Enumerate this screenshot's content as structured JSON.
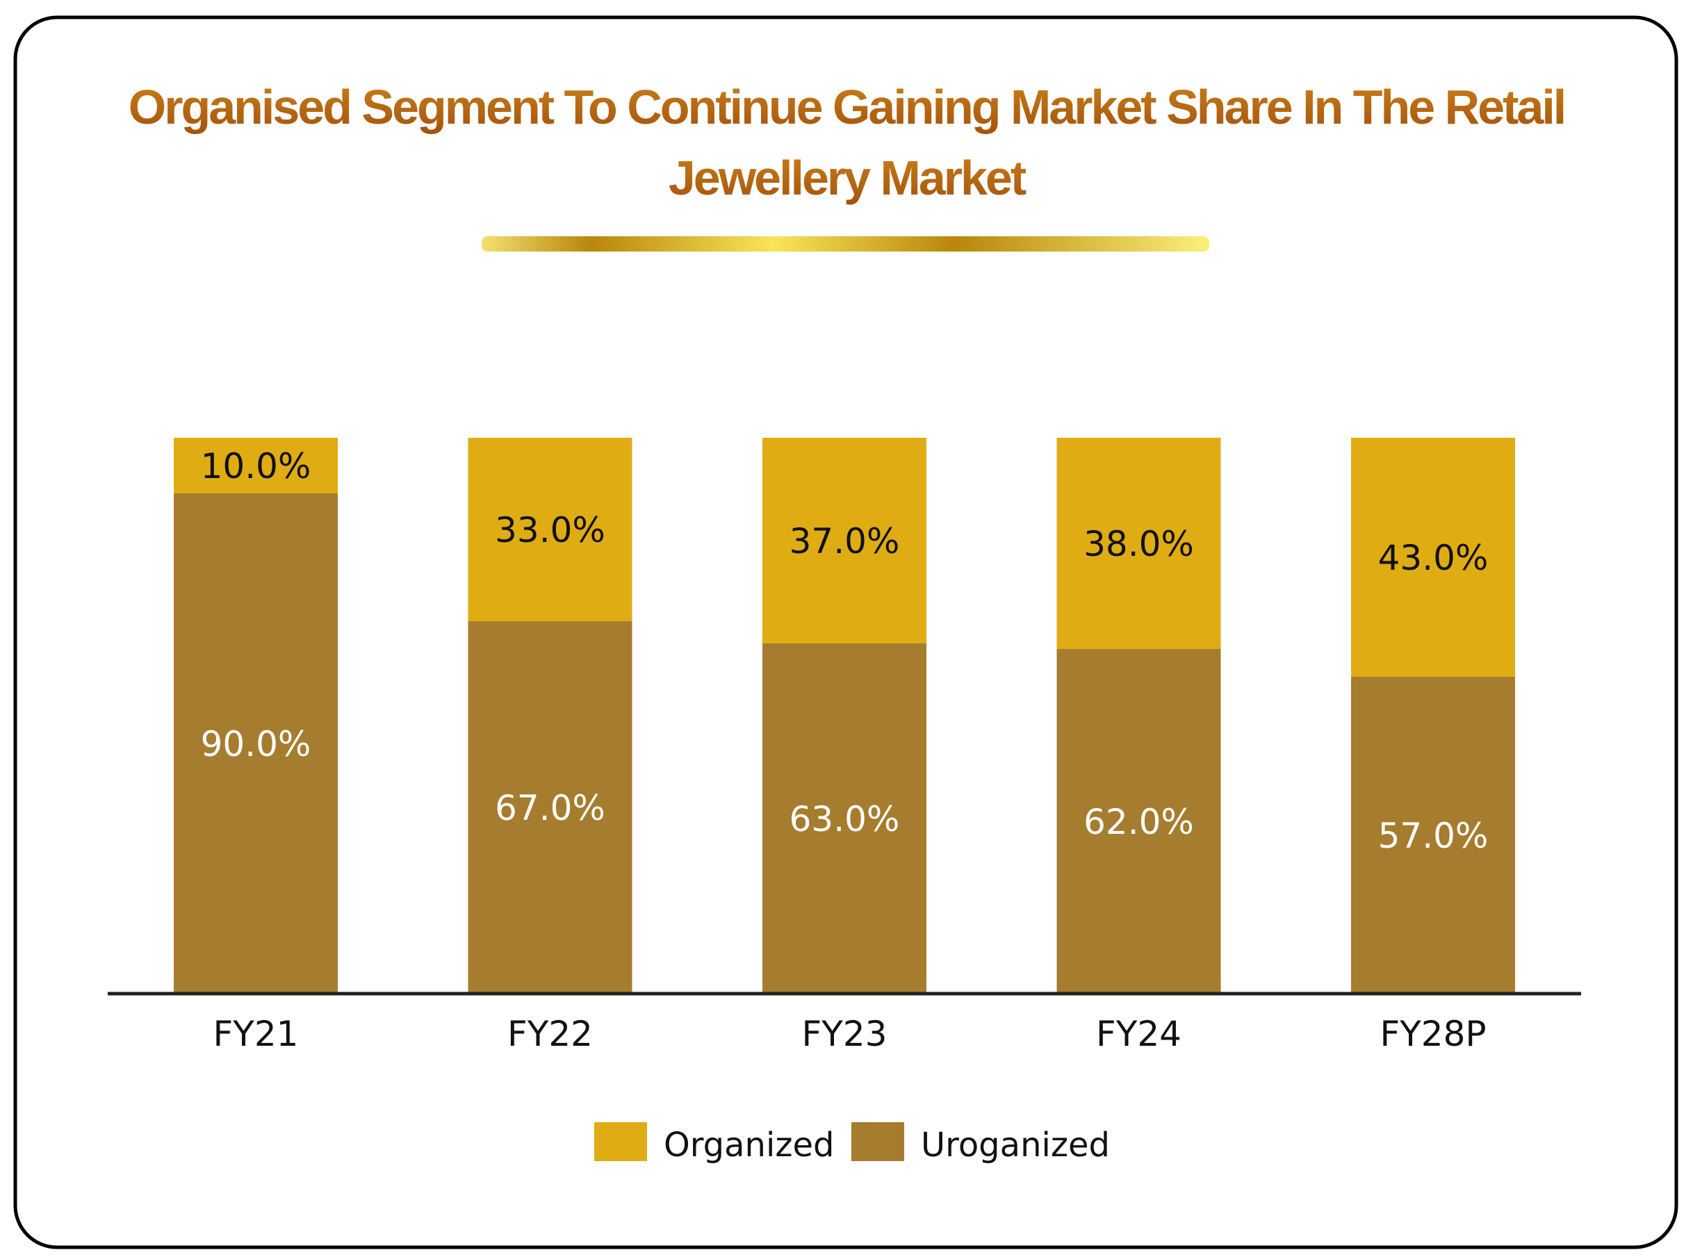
{
  "chart_data": {
    "type": "bar",
    "stacked": true,
    "title_lines": [
      "Organised Segment To Continue Gaining Market Share In The Retail",
      "Jewellery Market"
    ],
    "categories": [
      "FY21",
      "FY22",
      "FY23",
      "FY24",
      "FY28P"
    ],
    "series": [
      {
        "name": "Organized",
        "values": [
          10.0,
          33.0,
          37.0,
          38.0,
          43.0
        ],
        "labels": [
          "10.0%",
          "33.0%",
          "37.0%",
          "38.0%",
          "43.0%"
        ],
        "color": "#E0AC14",
        "label_color": "#111111"
      },
      {
        "name": "Uroganized",
        "values": [
          90.0,
          67.0,
          63.0,
          62.0,
          57.0
        ],
        "labels": [
          "90.0%",
          "67.0%",
          "63.0%",
          "62.0%",
          "57.0%"
        ],
        "color": "#A67C2E",
        "label_color": "#FFFFFF"
      }
    ],
    "ylim": [
      0,
      100
    ],
    "grid": false,
    "legend_position": "bottom",
    "title_color": "#B8650F"
  }
}
